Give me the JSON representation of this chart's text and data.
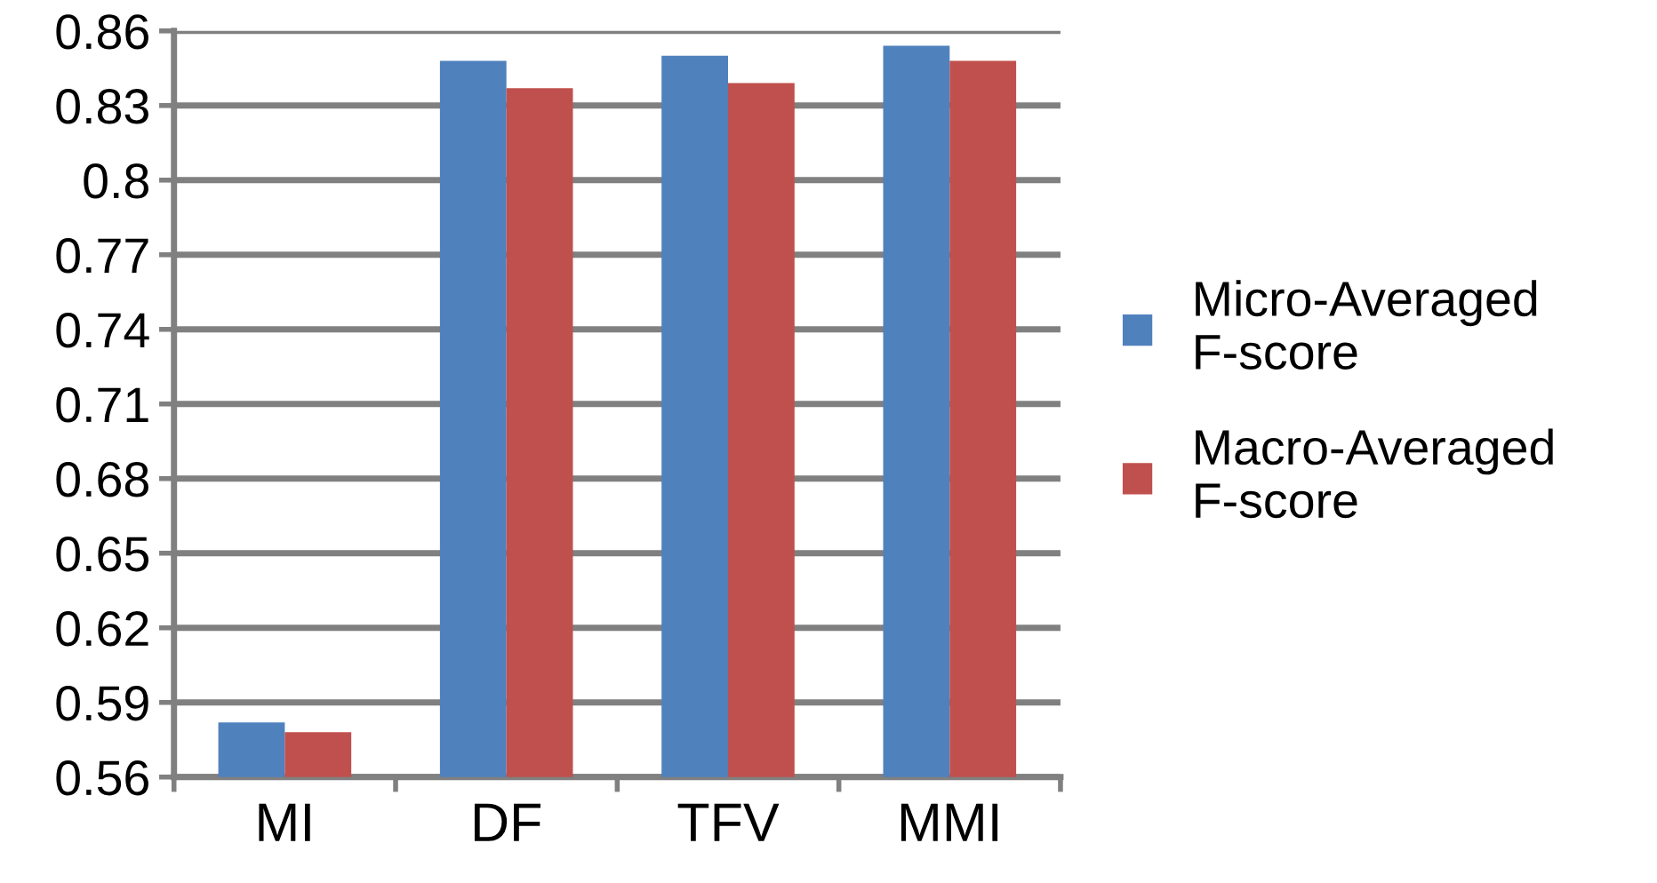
{
  "chart_data": {
    "type": "bar",
    "categories": [
      "MI",
      "DF",
      "TFV",
      "MMI"
    ],
    "series": [
      {
        "name": "Micro-Averaged\nF-score",
        "color": "#4f81bd",
        "values": [
          0.582,
          0.848,
          0.85,
          0.854
        ]
      },
      {
        "name": "Macro-Averaged\nF-score",
        "color": "#c0504d",
        "values": [
          0.578,
          0.837,
          0.839,
          0.848
        ]
      }
    ],
    "ylim": [
      0.56,
      0.86
    ],
    "yticks": [
      0.56,
      0.59,
      0.62,
      0.65,
      0.68,
      0.71,
      0.74,
      0.77,
      0.8,
      0.83,
      0.86
    ],
    "grid": "y",
    "legend": "right"
  }
}
